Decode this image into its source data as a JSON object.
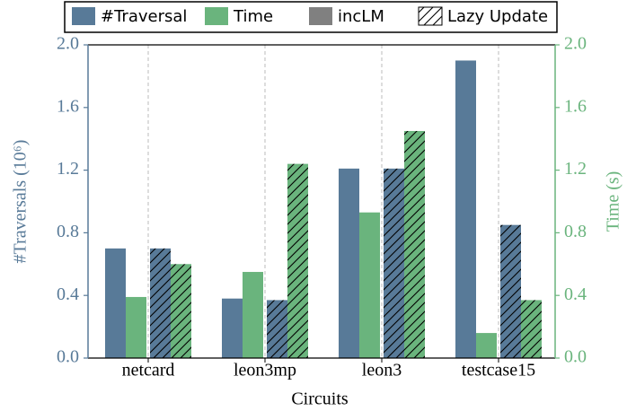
{
  "chart_data": {
    "type": "bar",
    "xlabel": "Circuits",
    "ylabel": "#Traversals (10⁶)",
    "y2label": "Time (s)",
    "categories": [
      "netcard",
      "leon3mp",
      "leon3",
      "testcase15"
    ],
    "series": [
      {
        "color": "#587a98",
        "hatch": false,
        "axis": "y",
        "values": [
          0.7,
          0.38,
          1.21,
          1.9
        ]
      },
      {
        "color": "#6ab47d",
        "hatch": false,
        "axis": "y2",
        "values": [
          0.39,
          0.55,
          0.93,
          0.16
        ]
      },
      {
        "color": "#587a98",
        "hatch": true,
        "axis": "y",
        "values": [
          0.7,
          0.37,
          1.21,
          0.85
        ]
      },
      {
        "color": "#6ab47d",
        "hatch": true,
        "axis": "y2",
        "values": [
          0.6,
          1.24,
          1.45,
          0.37
        ]
      }
    ],
    "legend": [
      {
        "label": "#Traversal",
        "color": "#587a98",
        "hatch": false
      },
      {
        "label": "Time",
        "color": "#6ab47d",
        "hatch": false
      },
      {
        "label": "incLM",
        "color": "#808080",
        "hatch": false
      },
      {
        "label": "Lazy Update",
        "color": "#ffffff",
        "hatch": true
      }
    ],
    "ylim": [
      0,
      2.0
    ],
    "yticks": [
      {
        "value": 0,
        "label": "0.0"
      },
      0.4,
      0.8,
      1.2,
      1.6,
      {
        "value": 2.0,
        "label": "2.0"
      }
    ],
    "y2lim": [
      0,
      2.0
    ],
    "y2ticks": [
      {
        "value": 0,
        "label": "0.0"
      },
      0.4,
      0.8,
      1.2,
      1.6,
      {
        "value": 2.0,
        "label": "2.0"
      }
    ],
    "xgrid": true,
    "ycolor": "#587a98",
    "y2color": "#6ab47d"
  }
}
